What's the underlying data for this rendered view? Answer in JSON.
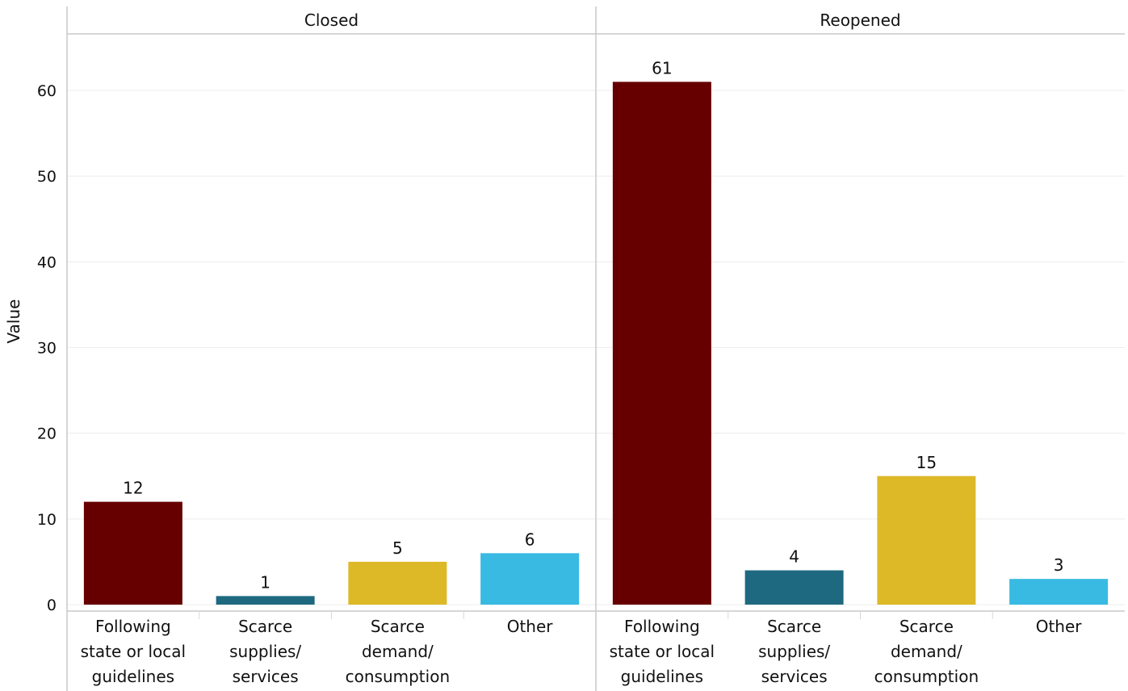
{
  "chart_data": {
    "type": "bar",
    "ylabel": "Value",
    "ylim": [
      0,
      66
    ],
    "yticks": [
      0,
      10,
      20,
      30,
      40,
      50,
      60
    ],
    "grid": true,
    "categories": [
      [
        "Following",
        "state or local",
        "guidelines"
      ],
      [
        "Scarce",
        "supplies/",
        "services"
      ],
      [
        "Scarce",
        "demand/",
        "consumption"
      ],
      [
        "Other"
      ]
    ],
    "colors": [
      "#660000",
      "#1f6980",
      "#ddb928",
      "#38bae2"
    ],
    "panels": [
      {
        "title": "Closed",
        "values": [
          12,
          1,
          5,
          6
        ]
      },
      {
        "title": "Reopened",
        "values": [
          61,
          4,
          15,
          3
        ]
      }
    ]
  }
}
